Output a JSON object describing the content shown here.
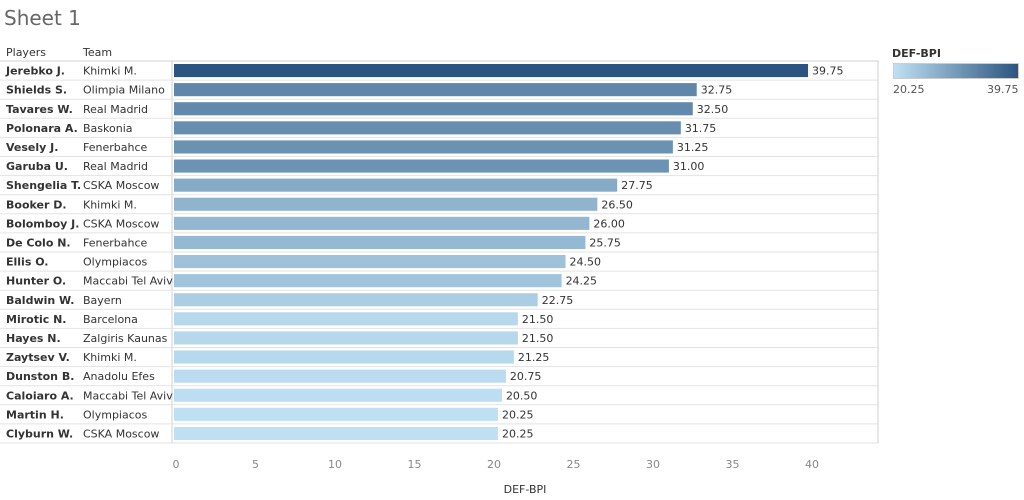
{
  "page": {
    "title": "Sheet 1"
  },
  "headers": {
    "players": "Players",
    "team": "Team"
  },
  "legend": {
    "title": "DEF-BPI",
    "min_label": "20.25",
    "max_label": "39.75",
    "color_low": "#bfe0f3",
    "color_high": "#2b5580"
  },
  "chart_data": {
    "type": "bar",
    "orientation": "horizontal",
    "xlabel": "DEF-BPI",
    "xlim": [
      0,
      44
    ],
    "xticks": [
      0,
      5,
      10,
      15,
      20,
      25,
      30,
      35,
      40
    ],
    "rows": [
      {
        "player": "Jerebko J.",
        "team": "Khimki M.",
        "value": 39.75,
        "label": "39.75"
      },
      {
        "player": "Shields S.",
        "team": "Olimpia Milano",
        "value": 32.75,
        "label": "32.75"
      },
      {
        "player": "Tavares W.",
        "team": "Real Madrid",
        "value": 32.5,
        "label": "32.50"
      },
      {
        "player": "Polonara A.",
        "team": "Baskonia",
        "value": 31.75,
        "label": "31.75"
      },
      {
        "player": "Vesely J.",
        "team": "Fenerbahce",
        "value": 31.25,
        "label": "31.25"
      },
      {
        "player": "Garuba U.",
        "team": "Real Madrid",
        "value": 31.0,
        "label": "31.00"
      },
      {
        "player": "Shengelia T.",
        "team": "CSKA Moscow",
        "value": 27.75,
        "label": "27.75"
      },
      {
        "player": "Booker D.",
        "team": "Khimki M.",
        "value": 26.5,
        "label": "26.50"
      },
      {
        "player": "Bolomboy J.",
        "team": "CSKA Moscow",
        "value": 26.0,
        "label": "26.00"
      },
      {
        "player": "De Colo N.",
        "team": "Fenerbahce",
        "value": 25.75,
        "label": "25.75"
      },
      {
        "player": "Ellis O.",
        "team": "Olympiacos",
        "value": 24.5,
        "label": "24.50"
      },
      {
        "player": "Hunter O.",
        "team": "Maccabi Tel Aviv",
        "value": 24.25,
        "label": "24.25"
      },
      {
        "player": "Baldwin W.",
        "team": "Bayern",
        "value": 22.75,
        "label": "22.75"
      },
      {
        "player": "Mirotic N.",
        "team": "Barcelona",
        "value": 21.5,
        "label": "21.50"
      },
      {
        "player": "Hayes N.",
        "team": "Zalgiris Kaunas",
        "value": 21.5,
        "label": "21.50"
      },
      {
        "player": "Zaytsev V.",
        "team": "Khimki M.",
        "value": 21.25,
        "label": "21.25"
      },
      {
        "player": "Dunston B.",
        "team": "Anadolu Efes",
        "value": 20.75,
        "label": "20.75"
      },
      {
        "player": "Caloiaro A.",
        "team": "Maccabi Tel Aviv",
        "value": 20.5,
        "label": "20.50"
      },
      {
        "player": "Martin H.",
        "team": "Olympiacos",
        "value": 20.25,
        "label": "20.25"
      },
      {
        "player": "Clyburn W.",
        "team": "CSKA Moscow",
        "value": 20.25,
        "label": "20.25"
      }
    ]
  }
}
